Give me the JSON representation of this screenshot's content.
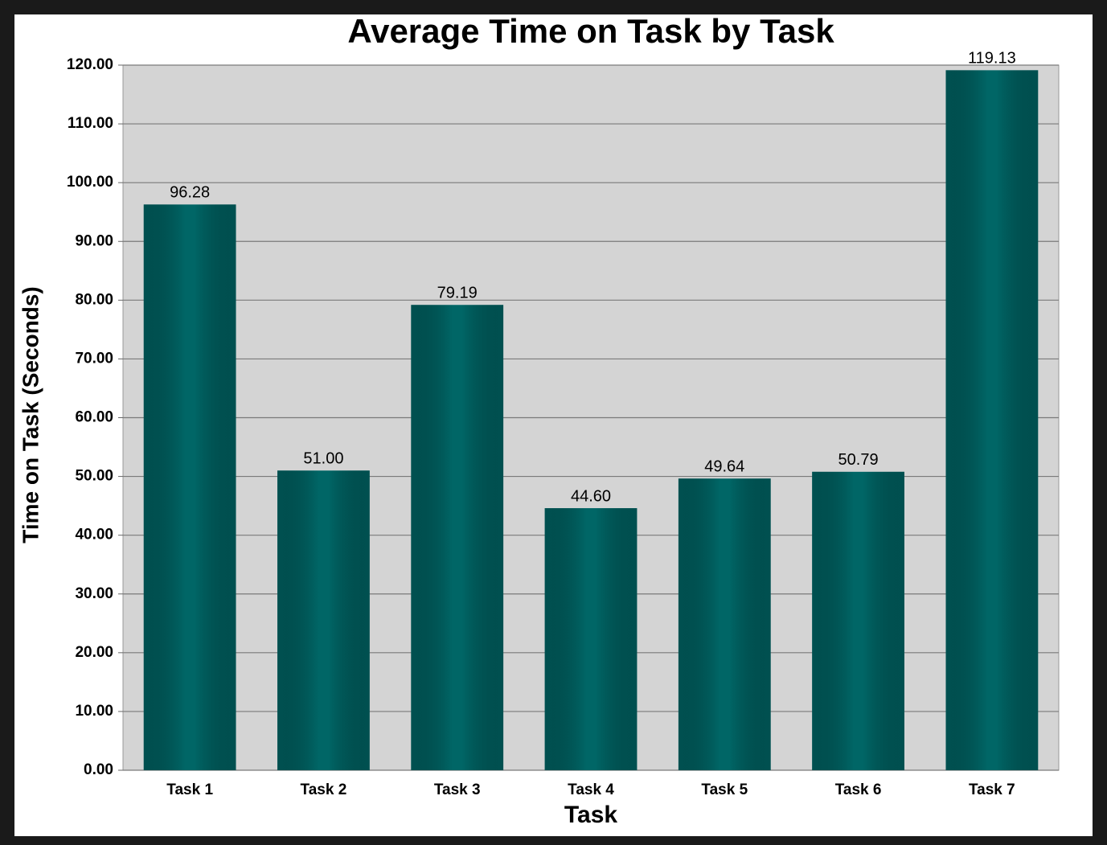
{
  "chart_data": {
    "type": "bar",
    "title": "Average Time on Task by Task",
    "x_label": "Task",
    "y_label": "Time on Task (Seconds)",
    "categories": [
      "Task 1",
      "Task 2",
      "Task 3",
      "Task 4",
      "Task 5",
      "Task 6",
      "Task 7"
    ],
    "values": [
      96.28,
      51,
      79.19,
      44.6,
      49.64,
      50.79,
      119.13
    ],
    "value_labels": [
      "96.28",
      "51.00",
      "79.19",
      "44.60",
      "49.64",
      "50.79",
      "119.13"
    ],
    "color": "#006666",
    "ylim": [
      0,
      120
    ],
    "yticks": [
      {
        "value": 0,
        "label": "0.00"
      },
      {
        "value": 10,
        "label": "10.00"
      },
      {
        "value": 20,
        "label": "20.00"
      },
      {
        "value": 30,
        "label": "30.00"
      },
      {
        "value": 40,
        "label": "40.00"
      },
      {
        "value": 50,
        "label": "50.00"
      },
      {
        "value": 60,
        "label": "60.00"
      },
      {
        "value": 70,
        "label": "70.00"
      },
      {
        "value": 80,
        "label": "80.00"
      },
      {
        "value": 90,
        "label": "90.00"
      },
      {
        "value": 100,
        "label": "100.00"
      },
      {
        "value": 110,
        "label": "110.00"
      },
      {
        "value": 120,
        "label": "120.00"
      }
    ],
    "grid": true
  }
}
